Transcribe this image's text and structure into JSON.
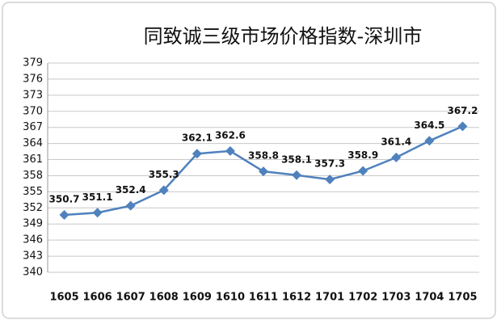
{
  "chart_data": {
    "type": "line",
    "title": "同致诚三级市场价格指数-深圳市",
    "categories": [
      "1605",
      "1606",
      "1607",
      "1608",
      "1609",
      "1610",
      "1611",
      "1612",
      "1701",
      "1702",
      "1703",
      "1704",
      "1705"
    ],
    "values": [
      350.7,
      351.1,
      352.4,
      355.3,
      362.1,
      362.6,
      358.8,
      358.1,
      357.3,
      358.9,
      361.4,
      364.5,
      367.2
    ],
    "color": "#4f81bd",
    "ylim": [
      340,
      379
    ],
    "yticks": [
      340,
      343,
      346,
      349,
      352,
      355,
      358,
      361,
      364,
      367,
      370,
      373,
      376,
      379
    ],
    "grid": true
  }
}
